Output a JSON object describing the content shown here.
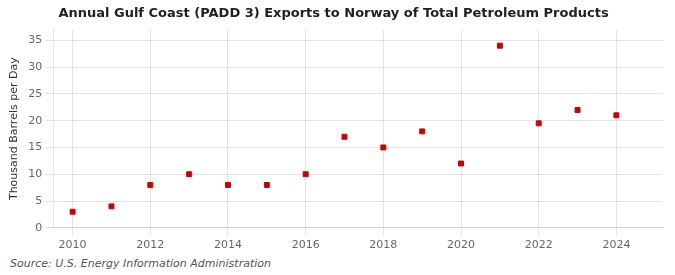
{
  "chart_data": {
    "type": "scatter",
    "title": "Annual Gulf Coast (PADD 3) Exports to Norway of Total Petroleum Products",
    "ylabel": "Thousand Barrels per Day",
    "annotations": [
      "Source: U.S. Energy Information Administration"
    ],
    "x": [
      2010,
      2011,
      2012,
      2013,
      2014,
      2015,
      2016,
      2017,
      2018,
      2019,
      2020,
      2021,
      2022,
      2023,
      2024
    ],
    "values": [
      3.0,
      4.0,
      8.0,
      10.0,
      8.0,
      8.0,
      10.0,
      17.0,
      15.0,
      18.0,
      12.0,
      34.0,
      19.5,
      22.0,
      21.0
    ],
    "color": "#cc0000",
    "marker": "square",
    "xlim": [
      2009.5,
      2025.2
    ],
    "xticks": [
      2010,
      2012,
      2014,
      2016,
      2018,
      2020,
      2022,
      2024
    ],
    "ylim": [
      0,
      37
    ],
    "yticks": [
      0,
      5,
      10,
      15,
      20,
      25,
      30,
      35
    ],
    "grid": true
  }
}
